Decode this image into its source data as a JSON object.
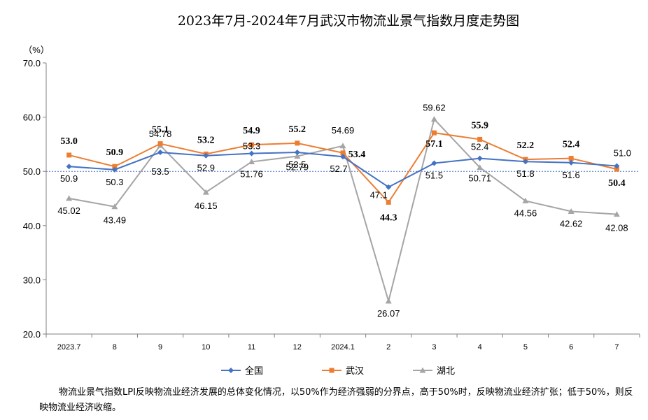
{
  "chart_data": {
    "type": "line",
    "title": "2023年7月-2024年7月武汉市物流业景气指数月度走势图",
    "ylabel": "（%）",
    "ylim": [
      20,
      70
    ],
    "yticks": [
      "70.0",
      "60.0",
      "50.0",
      "40.0",
      "30.0",
      "20.0"
    ],
    "reference_line": 50,
    "categories": [
      "2023.7",
      "8",
      "9",
      "10",
      "11",
      "12",
      "2024.1",
      "2",
      "3",
      "4",
      "5",
      "6",
      "7"
    ],
    "grid": false,
    "legend_position": "bottom",
    "series": [
      {
        "name": "全国",
        "color": "#4472C4",
        "marker": "diamond",
        "values": [
          50.9,
          50.3,
          53.5,
          52.9,
          53.3,
          53.5,
          52.7,
          47.1,
          51.5,
          52.4,
          51.8,
          51.6,
          51.0
        ],
        "labels": [
          "50.9",
          "50.3",
          "53.5",
          "52.9",
          "53.3",
          "53.5",
          "52.7",
          "47.1",
          "51.5",
          "52.4",
          "51.8",
          "51.6",
          "51.0"
        ]
      },
      {
        "name": "武汉",
        "color": "#ED7D31",
        "marker": "square",
        "values": [
          53.0,
          50.9,
          55.1,
          53.2,
          54.9,
          55.2,
          53.4,
          44.3,
          57.1,
          55.9,
          52.2,
          52.4,
          50.4
        ],
        "labels": [
          "53.0",
          "50.9",
          "55.1",
          "53.2",
          "54.9",
          "55.2",
          "53.4",
          "44.3",
          "57.1",
          "55.9",
          "52.2",
          "52.4",
          "50.4"
        ]
      },
      {
        "name": "湖北",
        "color": "#A5A5A5",
        "marker": "triangle",
        "values": [
          45.02,
          43.49,
          54.78,
          46.15,
          51.76,
          52.79,
          54.69,
          26.07,
          59.62,
          50.71,
          44.56,
          42.62,
          42.08
        ],
        "labels": [
          "45.02",
          "43.49",
          "54.78",
          "46.15",
          "51.76",
          "52.79",
          "54.69",
          "26.07",
          "59.62",
          "50.71",
          "44.56",
          "42.62",
          "42.08"
        ]
      }
    ]
  },
  "note": "物流业景气指数LPI反映物流业经济发展的总体变化情况，以50%作为经济强弱的分界点，高于50%时，反映物流业经济扩张；低于50%，则反映物流业经济收缩。"
}
